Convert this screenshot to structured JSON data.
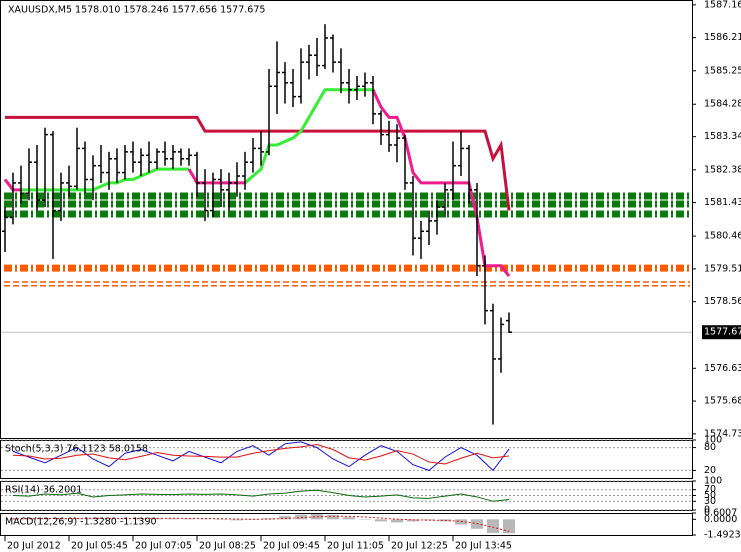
{
  "chart_data": [
    {
      "type": "ohlc",
      "title": "XAUUSDX,M5  1578.010 1578.246 1577.656 1577.675",
      "categories": [
        "20 Jul 2012",
        null,
        null,
        null,
        null,
        null,
        null,
        null,
        "20 Jul 05:45",
        null,
        null,
        null,
        null,
        null,
        null,
        null,
        "20 Jul 07:05",
        null,
        null,
        null,
        null,
        null,
        null,
        null,
        "20 Jul 08:25",
        null,
        null,
        null,
        null,
        null,
        null,
        null,
        "20 Jul 09:45",
        null,
        null,
        null,
        null,
        null,
        null,
        null,
        "20 Jul 11:05",
        null,
        null,
        null,
        null,
        null,
        null,
        null,
        "20 Jul 12:25",
        null,
        null,
        null,
        null,
        null,
        null,
        null,
        "20 Jul 13:45",
        null,
        null,
        null,
        null,
        null,
        null,
        null
      ],
      "open": [
        1580.6,
        1581.0,
        1582.0,
        1581.7,
        1582.6,
        1581.5,
        1583.4,
        1581.2,
        1582.0,
        1581.9,
        1583.0,
        1582.1,
        1582.5,
        1582.3,
        1582.7,
        1582.3,
        1582.9,
        1582.6,
        1582.8,
        1582.6,
        1582.9,
        1582.7,
        1582.9,
        1582.7,
        1582.8,
        1582.0,
        1581.2,
        1582.1,
        1581.8,
        1582.0,
        1582.2,
        1582.6,
        1583.0,
        1582.9,
        1584.8,
        1585.2,
        1584.9,
        1584.5,
        1585.5,
        1585.7,
        1585.4,
        1586.2,
        1585.5,
        1584.9,
        1584.7,
        1584.8,
        1584.9,
        1584.0,
        1583.4,
        1583.1,
        1583.3,
        1582.0,
        1580.4,
        1580.6,
        1580.9,
        1581.3,
        1581.8,
        1582.5,
        1583.0,
        1581.8,
        1579.6,
        1578.3,
        1576.9,
        1578.01
      ],
      "high": [
        1581.3,
        1582.3,
        1582.5,
        1583.0,
        1583.1,
        1583.6,
        1583.5,
        1582.3,
        1582.5,
        1583.6,
        1583.2,
        1582.8,
        1583.1,
        1582.9,
        1583.0,
        1583.1,
        1583.2,
        1583.0,
        1583.2,
        1583.0,
        1583.2,
        1583.1,
        1583.0,
        1583.0,
        1582.9,
        1582.4,
        1582.3,
        1582.4,
        1582.3,
        1582.6,
        1582.9,
        1583.3,
        1583.5,
        1585.3,
        1586.1,
        1585.5,
        1585.3,
        1585.9,
        1586.0,
        1586.2,
        1586.6,
        1586.3,
        1585.9,
        1585.3,
        1585.1,
        1585.2,
        1585.1,
        1584.1,
        1583.8,
        1583.7,
        1583.4,
        1582.2,
        1580.9,
        1581.2,
        1581.5,
        1582.0,
        1583.2,
        1583.5,
        1583.1,
        1582.0,
        1579.9,
        1578.5,
        1578.1,
        1578.246
      ],
      "low": [
        1580.0,
        1580.8,
        1581.4,
        1581.5,
        1581.2,
        1581.3,
        1579.8,
        1580.9,
        1581.6,
        1581.8,
        1581.7,
        1581.5,
        1582.0,
        1581.8,
        1582.0,
        1582.1,
        1582.3,
        1582.2,
        1582.3,
        1582.4,
        1582.5,
        1582.4,
        1582.5,
        1582.5,
        1581.6,
        1580.9,
        1581.0,
        1581.3,
        1581.2,
        1581.6,
        1581.8,
        1582.3,
        1582.5,
        1582.8,
        1584.0,
        1584.3,
        1584.2,
        1584.3,
        1585.0,
        1585.1,
        1585.3,
        1585.2,
        1584.6,
        1584.3,
        1584.4,
        1584.5,
        1583.7,
        1583.1,
        1582.9,
        1582.6,
        1581.8,
        1579.9,
        1579.8,
        1580.2,
        1580.5,
        1581.0,
        1581.5,
        1582.2,
        1581.4,
        1579.3,
        1577.9,
        1575.0,
        1576.5,
        1577.656
      ],
      "close": [
        1581.0,
        1582.0,
        1581.7,
        1582.6,
        1581.5,
        1583.4,
        1581.2,
        1582.0,
        1581.9,
        1583.0,
        1582.1,
        1582.5,
        1582.3,
        1582.7,
        1582.3,
        1582.9,
        1582.6,
        1582.8,
        1582.6,
        1582.9,
        1582.7,
        1582.9,
        1582.7,
        1582.8,
        1582.0,
        1581.2,
        1582.1,
        1581.8,
        1582.0,
        1582.2,
        1582.6,
        1583.0,
        1582.9,
        1584.8,
        1585.2,
        1584.9,
        1584.5,
        1585.5,
        1585.7,
        1585.4,
        1586.2,
        1585.5,
        1584.9,
        1584.7,
        1584.8,
        1584.9,
        1584.0,
        1583.4,
        1583.1,
        1583.3,
        1582.0,
        1580.4,
        1580.6,
        1580.9,
        1581.3,
        1581.8,
        1582.5,
        1583.0,
        1581.8,
        1579.6,
        1578.3,
        1576.9,
        1577.9,
        1577.675
      ],
      "color": "#000000",
      "series": [
        {
          "color": "#c8103c",
          "values": [
            1583.9,
            1583.9,
            1583.9,
            1583.9,
            1583.9,
            1583.9,
            1583.9,
            1583.9,
            1583.9,
            1583.9,
            1583.9,
            1583.9,
            1583.9,
            1583.9,
            1583.9,
            1583.9,
            1583.9,
            1583.9,
            1583.9,
            1583.9,
            1583.9,
            1583.9,
            1583.9,
            1583.9,
            1583.9,
            1583.5,
            1583.5,
            1583.5,
            1583.5,
            1583.5,
            1583.5,
            1583.5,
            1583.5,
            1583.5,
            1583.5,
            1583.5,
            1583.5,
            1583.5,
            1583.5,
            1583.5,
            1583.5,
            1583.5,
            1583.5,
            1583.5,
            1583.5,
            1583.5,
            1583.5,
            1583.5,
            1583.5,
            1583.5,
            1583.5,
            1583.5,
            1583.5,
            1583.5,
            1583.5,
            1583.5,
            1583.5,
            1583.5,
            1583.5,
            1583.5,
            1583.5,
            1582.7,
            1583.1,
            1581.2
          ]
        },
        {
          "color": "#33ee33",
          "values": [
            null,
            null,
            1581.8,
            1581.8,
            1581.8,
            1581.8,
            1581.8,
            1581.8,
            1581.8,
            1581.8,
            1581.8,
            1581.8,
            1581.9,
            1582.0,
            1582.0,
            1582.1,
            1582.1,
            1582.2,
            1582.3,
            1582.4,
            1582.4,
            1582.4,
            1582.4,
            1582.4,
            null,
            null,
            null,
            null,
            null,
            null,
            1582.0,
            1582.2,
            1582.4,
            1583.1,
            1583.1,
            1583.2,
            1583.3,
            1583.5,
            1583.9,
            1584.3,
            1584.7,
            1584.7,
            1584.7,
            1584.7,
            1584.7,
            1584.7,
            1584.7,
            null,
            null,
            null,
            null,
            null,
            null,
            null,
            null,
            null,
            null,
            null,
            null,
            null,
            null,
            null,
            null,
            null
          ]
        },
        {
          "color": "#ee1c8c",
          "values": [
            1582.1,
            1581.8,
            1581.8,
            null,
            null,
            null,
            null,
            null,
            null,
            null,
            null,
            null,
            null,
            null,
            null,
            null,
            null,
            null,
            null,
            null,
            null,
            null,
            null,
            1582.4,
            1582.0,
            1582.0,
            1582.0,
            1582.0,
            1582.0,
            1582.0,
            1582.0,
            null,
            null,
            null,
            null,
            null,
            null,
            null,
            null,
            null,
            null,
            null,
            null,
            null,
            null,
            null,
            1584.7,
            1584.2,
            1583.9,
            1583.9,
            1583.3,
            1582.3,
            1582.0,
            1582.0,
            1582.0,
            1582.0,
            1582.0,
            1582.0,
            1582.0,
            1581.0,
            1579.6,
            1579.6,
            1579.6,
            1579.3
          ]
        }
      ],
      "levels": [
        {
          "value": 1581.62,
          "color": "#0a7a0a",
          "style": "thick"
        },
        {
          "value": 1581.39,
          "color": "#0a7a0a",
          "style": "thick"
        },
        {
          "value": 1581.1,
          "color": "#0a7a0a",
          "style": "thick"
        },
        {
          "value": 1579.53,
          "color": "#ff5a00",
          "style": "thick"
        },
        {
          "value": 1579.13,
          "color": "#ff5a00",
          "style": "thin"
        },
        {
          "value": 1579.02,
          "color": "#ff5a00",
          "style": "thin"
        }
      ],
      "current_price": {
        "value": 1577.675,
        "label": "1577.67"
      },
      "ylim": [
        1574.61,
        1587.3
      ],
      "yticks": [
        1587.16,
        {
          "value": 1586.21,
          "label": "1586.21"
        },
        1585.25,
        1584.28,
        1583.34,
        1582.38,
        1581.43,
        1580.46,
        1579.51,
        1578.56,
        1576.63,
        1575.68,
        1574.73
      ]
    },
    {
      "type": "line",
      "title": "Stoch(5,3,3) 76.1123 58.0158",
      "series": [
        {
          "color": "#1010e0",
          "values": [
            70,
            55,
            40,
            60,
            80,
            50,
            30,
            65,
            75,
            60,
            45,
            70,
            55,
            40,
            70,
            85,
            60,
            90,
            95,
            80,
            50,
            30,
            60,
            85,
            70,
            35,
            20,
            55,
            80,
            60,
            20,
            76.1123
          ]
        },
        {
          "color": "#e01010",
          "values": [
            60,
            58,
            50,
            52,
            60,
            63,
            53,
            48,
            57,
            67,
            60,
            58,
            57,
            55,
            55,
            65,
            72,
            78,
            82,
            88,
            75,
            53,
            47,
            58,
            72,
            63,
            42,
            37,
            52,
            65,
            53,
            58.0158
          ]
        }
      ],
      "ylim": [
        0,
        100
      ],
      "yticks": [
        100,
        80,
        20
      ],
      "grid": true
    },
    {
      "type": "line",
      "title": "RSI(14) 36.2001",
      "series": [
        {
          "color": "#0a6a0a",
          "values": [
            50,
            48,
            55,
            52,
            58,
            45,
            50,
            52,
            55,
            54,
            53,
            55,
            54,
            55,
            52,
            48,
            55,
            58,
            65,
            68,
            60,
            50,
            45,
            48,
            52,
            42,
            40,
            48,
            55,
            45,
            30,
            36.2001
          ]
        }
      ],
      "ylim": [
        0,
        100
      ],
      "yticks": [
        100,
        70,
        50,
        30,
        0
      ],
      "grid": true
    },
    {
      "type": "bar",
      "title": "MACD(12,26,9) -1.3280 -1.1390",
      "color": "#b8b8b8",
      "values": [
        0.05,
        0.1,
        0.08,
        0.1,
        0.12,
        0.1,
        0.05,
        0.08,
        0.1,
        0.12,
        0.1,
        0.08,
        0.05,
        0.0,
        -0.1,
        -0.05,
        0.1,
        0.3,
        0.45,
        0.5,
        0.4,
        0.2,
        0.0,
        -0.2,
        -0.3,
        -0.2,
        -0.1,
        -0.2,
        -0.5,
        -0.9,
        -1.3,
        -1.328
      ],
      "series": [
        {
          "color": "#e01010",
          "values": [
            0.04,
            0.06,
            0.07,
            0.08,
            0.09,
            0.1,
            0.09,
            0.08,
            0.08,
            0.09,
            0.1,
            0.09,
            0.08,
            0.06,
            0.02,
            0.0,
            0.02,
            0.08,
            0.15,
            0.24,
            0.3,
            0.28,
            0.22,
            0.12,
            0.02,
            -0.05,
            -0.08,
            -0.11,
            -0.2,
            -0.4,
            -0.75,
            -1.139
          ]
        }
      ],
      "ylim": [
        -1.4923,
        0.6007
      ],
      "yticks": [
        0.6007,
        {
          "value": 0,
          "label": "0.0000"
        },
        -1.4923
      ]
    }
  ]
}
